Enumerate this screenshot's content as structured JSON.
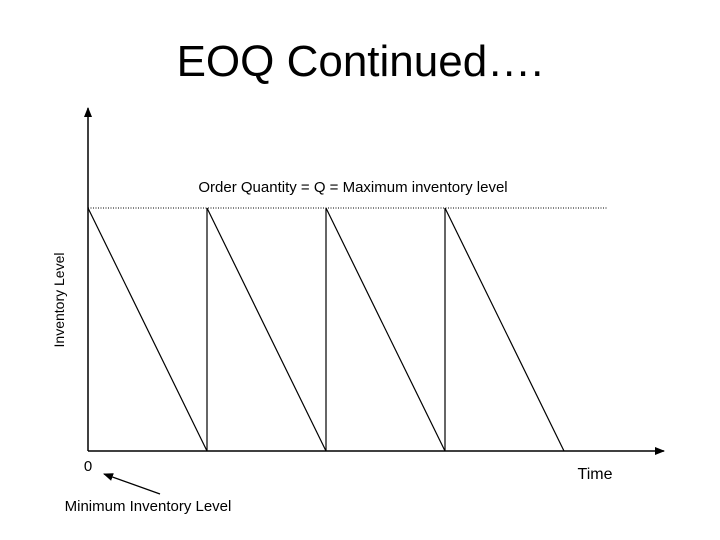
{
  "slide": {
    "title": "EOQ Continued…."
  },
  "diagram": {
    "max_label": "Order Quantity = Q = Maximum inventory level",
    "y_axis_label": "Inventory Level",
    "x_axis_label": "Time",
    "origin_label": "0",
    "min_label": "Minimum Inventory Level",
    "cycles": 4,
    "line_color": "#000000"
  }
}
